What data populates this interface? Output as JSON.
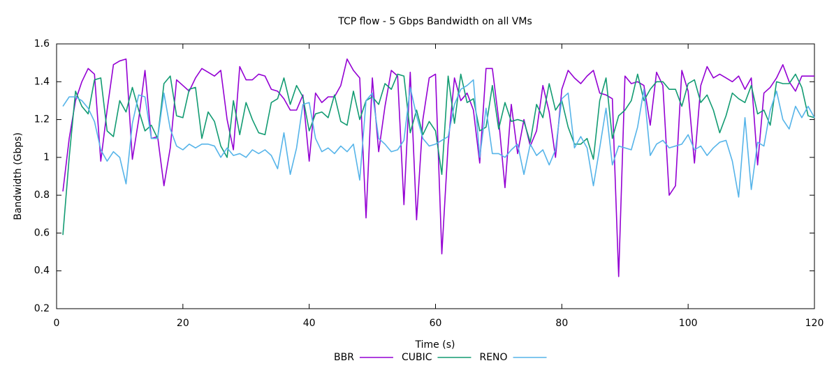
{
  "chart_data": {
    "type": "line",
    "title": "TCP flow - 5 Gbps Bandwidth on all VMs",
    "x_label": "Time (s)",
    "y_label": "Bandwidth (Gbps)",
    "x": [
      1,
      2,
      3,
      4,
      5,
      6,
      7,
      8,
      9,
      10,
      11,
      12,
      13,
      14,
      15,
      16,
      17,
      18,
      19,
      20,
      21,
      22,
      23,
      24,
      25,
      26,
      27,
      28,
      29,
      30,
      31,
      32,
      33,
      34,
      35,
      36,
      37,
      38,
      39,
      40,
      41,
      42,
      43,
      44,
      45,
      46,
      47,
      48,
      49,
      50,
      51,
      52,
      53,
      54,
      55,
      56,
      57,
      58,
      59,
      60,
      61,
      62,
      63,
      64,
      65,
      66,
      67,
      68,
      69,
      70,
      71,
      72,
      73,
      74,
      75,
      76,
      77,
      78,
      79,
      80,
      81,
      82,
      83,
      84,
      85,
      86,
      87,
      88,
      89,
      90,
      91,
      92,
      93,
      94,
      95,
      96,
      97,
      98,
      99,
      100,
      101,
      102,
      103,
      104,
      105,
      106,
      107,
      108,
      109,
      110,
      111,
      112,
      113,
      114,
      115,
      116,
      117,
      118,
      119,
      120
    ],
    "series": [
      {
        "name": "BBR",
        "color": "#9400d3",
        "values": [
          0.82,
          1.1,
          1.3,
          1.4,
          1.47,
          1.44,
          0.98,
          1.25,
          1.49,
          1.51,
          1.52,
          0.99,
          1.2,
          1.46,
          1.1,
          1.11,
          0.85,
          1.05,
          1.41,
          1.38,
          1.35,
          1.42,
          1.47,
          1.45,
          1.43,
          1.46,
          1.2,
          1.04,
          1.48,
          1.41,
          1.41,
          1.44,
          1.43,
          1.36,
          1.35,
          1.31,
          1.25,
          1.25,
          1.33,
          0.98,
          1.34,
          1.29,
          1.32,
          1.32,
          1.38,
          1.52,
          1.46,
          1.42,
          0.68,
          1.42,
          1.03,
          1.27,
          1.46,
          1.43,
          0.75,
          1.45,
          0.67,
          1.2,
          1.42,
          1.44,
          0.49,
          1.07,
          1.42,
          1.3,
          1.34,
          1.25,
          0.97,
          1.47,
          1.47,
          1.2,
          0.84,
          1.28,
          1.02,
          1.2,
          1.06,
          1.14,
          1.38,
          1.24,
          1.0,
          1.36,
          1.46,
          1.42,
          1.39,
          1.43,
          1.46,
          1.34,
          1.33,
          1.31,
          0.37,
          1.43,
          1.39,
          1.4,
          1.38,
          1.17,
          1.45,
          1.38,
          0.8,
          0.85,
          1.46,
          1.35,
          0.97,
          1.38,
          1.48,
          1.42,
          1.44,
          1.42,
          1.4,
          1.43,
          1.36,
          1.42,
          0.96,
          1.34,
          1.37,
          1.42,
          1.49,
          1.4,
          1.35,
          1.43,
          1.43,
          1.43
        ]
      },
      {
        "name": "CUBIC",
        "color": "#129b72",
        "values": [
          0.59,
          1.0,
          1.35,
          1.27,
          1.23,
          1.41,
          1.42,
          1.14,
          1.11,
          1.3,
          1.24,
          1.37,
          1.25,
          1.14,
          1.17,
          1.1,
          1.39,
          1.43,
          1.22,
          1.21,
          1.36,
          1.37,
          1.1,
          1.24,
          1.19,
          1.06,
          1.0,
          1.3,
          1.12,
          1.29,
          1.2,
          1.13,
          1.12,
          1.29,
          1.31,
          1.42,
          1.28,
          1.38,
          1.32,
          1.14,
          1.23,
          1.24,
          1.21,
          1.33,
          1.19,
          1.17,
          1.35,
          1.2,
          1.3,
          1.32,
          1.28,
          1.39,
          1.36,
          1.44,
          1.43,
          1.13,
          1.25,
          1.12,
          1.19,
          1.14,
          0.91,
          1.43,
          1.18,
          1.44,
          1.29,
          1.31,
          1.14,
          1.16,
          1.38,
          1.15,
          1.29,
          1.19,
          1.2,
          1.19,
          1.08,
          1.28,
          1.21,
          1.39,
          1.25,
          1.3,
          1.16,
          1.07,
          1.07,
          1.1,
          0.99,
          1.3,
          1.42,
          1.1,
          1.22,
          1.25,
          1.3,
          1.44,
          1.3,
          1.36,
          1.4,
          1.4,
          1.36,
          1.36,
          1.27,
          1.39,
          1.41,
          1.29,
          1.33,
          1.25,
          1.13,
          1.22,
          1.34,
          1.31,
          1.29,
          1.38,
          1.23,
          1.25,
          1.17,
          1.4,
          1.39,
          1.39,
          1.44,
          1.37,
          1.22,
          1.21
        ]
      },
      {
        "name": "RENO",
        "color": "#56b4e9",
        "values": [
          1.27,
          1.32,
          1.32,
          1.3,
          1.26,
          1.19,
          1.04,
          0.98,
          1.03,
          1.0,
          0.86,
          1.18,
          1.33,
          1.32,
          1.1,
          1.1,
          1.34,
          1.15,
          1.06,
          1.04,
          1.07,
          1.05,
          1.07,
          1.07,
          1.06,
          1.0,
          1.05,
          1.01,
          1.02,
          1.0,
          1.04,
          1.02,
          1.04,
          1.01,
          0.94,
          1.13,
          0.91,
          1.05,
          1.28,
          1.29,
          1.1,
          1.03,
          1.05,
          1.02,
          1.06,
          1.03,
          1.07,
          0.88,
          1.3,
          1.34,
          1.1,
          1.07,
          1.03,
          1.04,
          1.09,
          1.37,
          1.22,
          1.1,
          1.06,
          1.07,
          1.09,
          1.11,
          1.28,
          1.36,
          1.38,
          1.41,
          1.0,
          1.26,
          1.02,
          1.02,
          1.0,
          1.04,
          1.07,
          0.91,
          1.07,
          1.01,
          1.04,
          0.96,
          1.04,
          1.31,
          1.34,
          1.05,
          1.11,
          1.05,
          0.85,
          1.05,
          1.26,
          0.96,
          1.06,
          1.05,
          1.04,
          1.16,
          1.36,
          1.01,
          1.07,
          1.09,
          1.05,
          1.06,
          1.07,
          1.12,
          1.04,
          1.06,
          1.01,
          1.05,
          1.08,
          1.09,
          0.98,
          0.79,
          1.21,
          0.83,
          1.08,
          1.06,
          1.25,
          1.35,
          1.2,
          1.15,
          1.27,
          1.21,
          1.27,
          1.21
        ]
      }
    ],
    "xlim": [
      0,
      120
    ],
    "xticks": [
      0,
      20,
      40,
      60,
      80,
      100,
      120
    ],
    "ylim": [
      0.2,
      1.6
    ],
    "yticks": [
      0.2,
      0.4,
      0.6,
      0.8,
      1,
      1.2,
      1.4,
      1.6
    ],
    "grid": false,
    "legend": "bottom"
  }
}
